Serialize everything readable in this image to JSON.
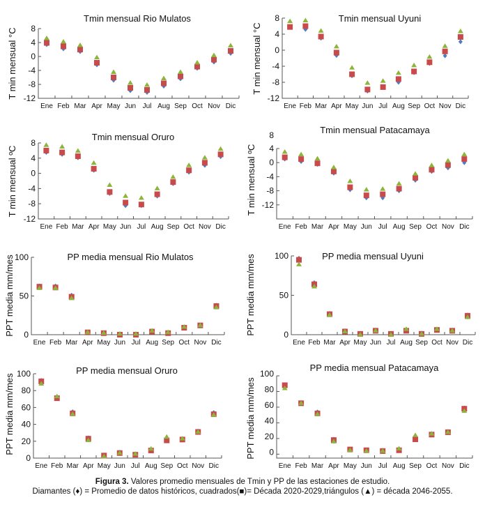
{
  "caption": {
    "figure_label": "Figura 3.",
    "line1": " Valores promedio mensuales de Tmin y PP de las estaciones de estudio.",
    "line2": "Diamantes (♦) = Promedio de datos históricos, cuadrados(■)= Década 2020-2029,triángulos (▲) = década 2046-2055."
  },
  "colors": {
    "historical": "#4a7fc4",
    "decade_2020_2029": "#c94a4a",
    "decade_2046_2055": "#8db53c"
  },
  "chart_data": [
    {
      "type": "scatter",
      "title": "Tmin mensual  Rio Mulatos",
      "xlabel": "",
      "ylabel": "T min mensual °C",
      "categories": [
        "Ene",
        "Feb",
        "Mar",
        "Apr",
        "May",
        "Jun",
        "Jul",
        "Aug",
        "Sep",
        "Oct",
        "Nov",
        "Dic"
      ],
      "ylim": [
        -12,
        8
      ],
      "yticks": [
        8,
        4,
        0,
        -4,
        -8,
        -12
      ],
      "grid": false,
      "series": [
        {
          "name": "Promedio de datos históricos",
          "marker": "diamond",
          "values": [
            3.4,
            2.2,
            1.4,
            -2.4,
            -6.8,
            -9.8,
            -10.3,
            -8.5,
            -6.4,
            -3.4,
            -1.6,
            0.9
          ]
        },
        {
          "name": "Década 2020-2029",
          "marker": "square",
          "values": [
            3.9,
            2.9,
            2.0,
            -1.8,
            -6.0,
            -9.0,
            -9.6,
            -7.7,
            -5.7,
            -2.9,
            -0.9,
            1.6
          ]
        },
        {
          "name": "Década 2046-2055",
          "marker": "triangle",
          "values": [
            5.2,
            4.2,
            3.2,
            -0.3,
            -4.5,
            -7.6,
            -8.2,
            -6.3,
            -4.5,
            -1.8,
            0.3,
            3.1
          ]
        }
      ]
    },
    {
      "type": "scatter",
      "title": "Tmin mensual  Uyuni",
      "xlabel": "",
      "ylabel": "T min mensual °C",
      "categories": [
        "Ene",
        "Feb",
        "Mar",
        "Apr",
        "May",
        "Jun",
        "Jul",
        "Aug",
        "Sep",
        "Oct",
        "Nov",
        "Dic"
      ],
      "ylim": [
        -12,
        8
      ],
      "yticks": [
        8,
        4,
        0,
        -4,
        -8,
        -12
      ],
      "grid": false,
      "series": [
        {
          "name": "Promedio de datos históricos",
          "marker": "diamond",
          "values": [
            5.8,
            5.2,
            3.0,
            -1.3,
            -6.4,
            -10.2,
            -9.3,
            -8.0,
            -5.6,
            -3.3,
            -1.4,
            2.1
          ]
        },
        {
          "name": "Década 2020-2029",
          "marker": "square",
          "values": [
            5.8,
            6.0,
            3.4,
            -0.6,
            -6.0,
            -9.8,
            -9.2,
            -7.2,
            -5.3,
            -3.0,
            -0.3,
            3.3
          ]
        },
        {
          "name": "Década 2046-2055",
          "marker": "triangle",
          "values": [
            7.2,
            7.4,
            4.8,
            0.9,
            -4.4,
            -8.2,
            -7.7,
            -5.7,
            -3.8,
            -1.7,
            1.0,
            4.7
          ]
        }
      ]
    },
    {
      "type": "scatter",
      "title": "Tmin mensual  Oruro",
      "xlabel": "",
      "ylabel": "T min mensual ºC",
      "categories": [
        "Ene",
        "Feb",
        "Mar",
        "Apr",
        "May",
        "Jun",
        "Jul",
        "Aug",
        "Sep",
        "Oct",
        "Nov",
        "Dic"
      ],
      "ylim": [
        -12,
        8
      ],
      "yticks": [
        8,
        4,
        0,
        -4,
        -8,
        -12
      ],
      "grid": false,
      "series": [
        {
          "name": "Promedio de datos históricos",
          "marker": "diamond",
          "values": [
            5.5,
            5.0,
            4.1,
            0.8,
            -5.3,
            -8.5,
            -8.5,
            -6.0,
            -2.7,
            0.3,
            2.1,
            4.4
          ]
        },
        {
          "name": "Década 2020-2029",
          "marker": "square",
          "values": [
            6.0,
            5.5,
            4.5,
            1.2,
            -4.9,
            -7.7,
            -8.2,
            -5.5,
            -2.3,
            0.8,
            2.8,
            5.0
          ]
        },
        {
          "name": "Década 2046-2055",
          "marker": "triangle",
          "values": [
            7.4,
            7.0,
            5.9,
            2.7,
            -3.1,
            -6.0,
            -6.5,
            -4.0,
            -1.0,
            2.1,
            4.1,
            6.4
          ]
        }
      ]
    },
    {
      "type": "scatter",
      "title": "Tmin mensual  Patacamaya",
      "xlabel": "",
      "ylabel": "T min mensual ºC",
      "categories": [
        "Ene",
        "Feb",
        "Mar",
        "Apr",
        "May",
        "Jun",
        "Jul",
        "Aug",
        "Sep",
        "Oct",
        "Nov",
        "Dic"
      ],
      "ylim": [
        -16,
        4
      ],
      "yticks": [
        8,
        4,
        0,
        -4,
        -8,
        -12
      ],
      "grid": false,
      "series": [
        {
          "name": "Promedio de datos históricos",
          "marker": "diamond",
          "values": [
            1.0,
            0.3,
            -0.5,
            -3.0,
            -7.7,
            -10.0,
            -10.0,
            -8.0,
            -5.0,
            -2.5,
            -1.5,
            0.0
          ]
        },
        {
          "name": "Década 2020-2029",
          "marker": "square",
          "values": [
            1.5,
            1.0,
            -0.2,
            -2.5,
            -7.0,
            -9.3,
            -9.0,
            -7.4,
            -4.3,
            -2.0,
            -0.7,
            1.0
          ]
        },
        {
          "name": "Década 2046-2055",
          "marker": "triangle",
          "values": [
            3.0,
            2.3,
            1.1,
            -1.4,
            -5.3,
            -7.7,
            -7.5,
            -6.0,
            -3.2,
            -0.8,
            0.5,
            2.3
          ]
        }
      ]
    },
    {
      "type": "scatter",
      "title": "PP media mensual Rio Mulatos",
      "xlabel": "",
      "ylabel": "PPT media mm/mes",
      "categories": [
        "Ene",
        "Feb",
        "Mar",
        "Apr",
        "May",
        "Jun",
        "Jul",
        "Aug",
        "Sep",
        "Oct",
        "Nov",
        "Dic"
      ],
      "ylim": [
        0,
        100
      ],
      "yticks": [
        100,
        50,
        0
      ],
      "grid": false,
      "series": [
        {
          "name": "Promedio de datos históricos",
          "marker": "diamond",
          "values": [
            63,
            63,
            51,
            3,
            2,
            1,
            1,
            4,
            3,
            9,
            12,
            38
          ]
        },
        {
          "name": "Década 2020-2029",
          "marker": "square",
          "values": [
            62,
            61,
            49,
            3,
            2,
            0,
            0,
            4,
            2,
            9,
            12,
            37
          ]
        },
        {
          "name": "Década 2046-2055",
          "marker": "triangle",
          "values": [
            60,
            60,
            47,
            3,
            2,
            1,
            1,
            5,
            3,
            10,
            12,
            35
          ]
        }
      ]
    },
    {
      "type": "scatter",
      "title": "PP media mensual  Uyuni",
      "xlabel": "",
      "ylabel": "PPT media mm/mes",
      "categories": [
        "Ene",
        "Feb",
        "Mar",
        "Apr",
        "May",
        "Jun",
        "Jul",
        "Aug",
        "Sep",
        "Oct",
        "Nov",
        "Dic"
      ],
      "ylim": [
        0,
        100
      ],
      "yticks": [
        100,
        50,
        0
      ],
      "grid": false,
      "series": [
        {
          "name": "Promedio de datos históricos",
          "marker": "diamond",
          "values": [
            97,
            66,
            27,
            5,
            1,
            6,
            1,
            6,
            2,
            7,
            6,
            25
          ]
        },
        {
          "name": "Década 2020-2029",
          "marker": "square",
          "values": [
            95,
            64,
            26,
            4,
            1,
            5,
            1,
            5,
            1,
            6,
            5,
            24
          ]
        },
        {
          "name": "Década 2046-2055",
          "marker": "triangle",
          "values": [
            89,
            61,
            25,
            4,
            0,
            5,
            0,
            7,
            1,
            7,
            5,
            22
          ]
        }
      ]
    },
    {
      "type": "scatter",
      "title": "PP media mensual  Oruro",
      "xlabel": "",
      "ylabel": "PPT media  mm/mes",
      "categories": [
        "Ene",
        "Feb",
        "Mar",
        "Apr",
        "May",
        "Jun",
        "Jul",
        "Aug",
        "Sep",
        "Oct",
        "Nov",
        "Dic"
      ],
      "ylim": [
        0,
        100
      ],
      "yticks": [
        100,
        80,
        60,
        40,
        20,
        0
      ],
      "grid": false,
      "series": [
        {
          "name": "Promedio de datos históricos",
          "marker": "diamond",
          "values": [
            92,
            72,
            55,
            24,
            3,
            7,
            5,
            10,
            23,
            23,
            32,
            54
          ]
        },
        {
          "name": "Década 2020-2029",
          "marker": "square",
          "values": [
            91,
            71,
            53,
            23,
            3,
            6,
            4,
            9,
            21,
            22,
            31,
            52
          ]
        },
        {
          "name": "Década 2046-2055",
          "marker": "triangle",
          "values": [
            88,
            73,
            52,
            21,
            2,
            6,
            5,
            11,
            25,
            23,
            31,
            51
          ]
        }
      ]
    },
    {
      "type": "scatter",
      "title": "PP media mensual  Patacamaya",
      "xlabel": "",
      "ylabel": "PPT media mm/mes",
      "categories": [
        "Ene",
        "Feb",
        "Mar",
        "Apr",
        "May",
        "Jun",
        "Jul",
        "Aug",
        "Sep",
        "Oct",
        "Nov",
        "Dic"
      ],
      "ylim": [
        -5,
        100
      ],
      "yticks": [
        100,
        80,
        60,
        40,
        20,
        0
      ],
      "grid": false,
      "series": [
        {
          "name": "Promedio de datos históricos",
          "marker": "diamond",
          "values": [
            88,
            66,
            54,
            19,
            6,
            5,
            5,
            6,
            20,
            26,
            29,
            59
          ]
        },
        {
          "name": "Década 2020-2029",
          "marker": "square",
          "values": [
            88,
            65,
            52,
            18,
            6,
            5,
            4,
            5,
            19,
            25,
            28,
            58
          ]
        },
        {
          "name": "Década 2046-2055",
          "marker": "triangle",
          "values": [
            84,
            65,
            51,
            16,
            5,
            4,
            4,
            7,
            24,
            26,
            28,
            55
          ]
        }
      ]
    }
  ]
}
